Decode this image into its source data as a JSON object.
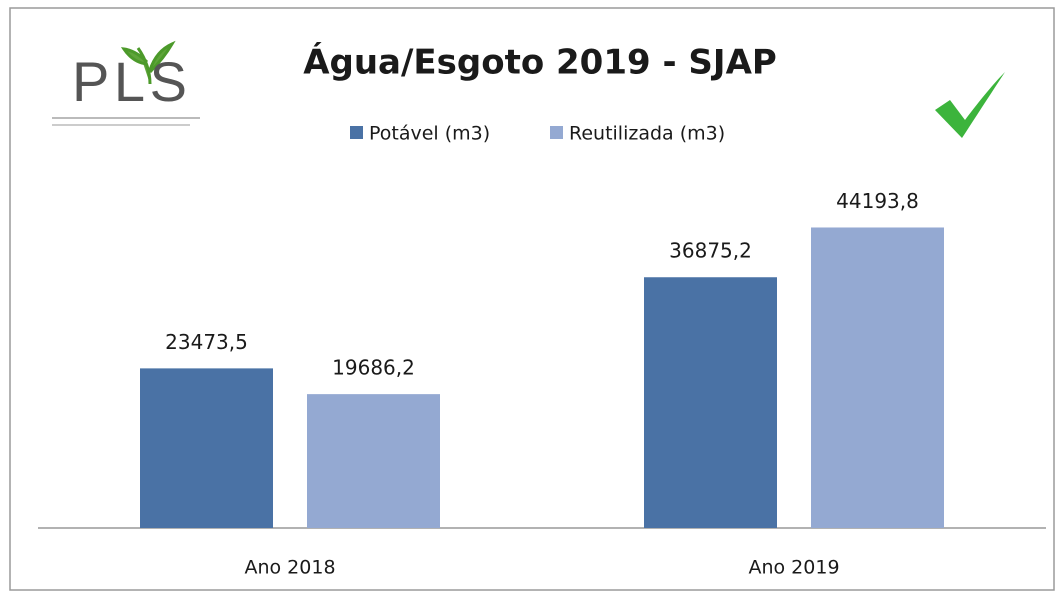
{
  "chart_data": {
    "type": "bar",
    "title": "Água/Esgoto 2019 -  SJAP",
    "logo": "PLS",
    "categories": [
      "Ano 2018",
      "Ano 2019"
    ],
    "series": [
      {
        "name": "Potável (m3)",
        "color": "#4a72a5",
        "values": [
          23473.5,
          36875.2
        ],
        "value_labels": [
          "23473,5",
          "36875,2"
        ]
      },
      {
        "name": "Reutilizada (m3)",
        "color": "#94a9d2",
        "values": [
          19686.2,
          44193.8
        ],
        "value_labels": [
          "19686,2",
          "44193,8"
        ]
      }
    ],
    "ylim": [
      0,
      50000
    ],
    "legend": "top"
  }
}
